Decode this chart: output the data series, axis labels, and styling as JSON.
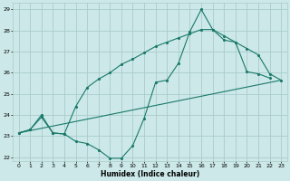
{
  "title": "",
  "xlabel": "Humidex (Indice chaleur)",
  "bg_color": "#cce8e8",
  "grid_color": "#aacccc",
  "line_color": "#1a7a6a",
  "xlim": [
    -0.5,
    23.5
  ],
  "ylim": [
    21.8,
    29.3
  ],
  "xticks": [
    0,
    1,
    2,
    3,
    4,
    5,
    6,
    7,
    8,
    9,
    10,
    11,
    12,
    13,
    14,
    15,
    16,
    17,
    18,
    19,
    20,
    21,
    22,
    23
  ],
  "yticks": [
    22,
    23,
    24,
    25,
    26,
    27,
    28,
    29
  ],
  "line1_x": [
    0,
    1,
    2,
    3,
    4,
    5,
    6,
    7,
    8,
    9,
    10,
    11,
    12,
    13,
    14,
    15,
    16,
    17,
    18,
    19,
    20,
    21,
    22
  ],
  "line1_y": [
    23.15,
    23.3,
    23.9,
    23.15,
    23.1,
    22.75,
    22.65,
    22.35,
    21.95,
    21.95,
    22.55,
    23.85,
    25.55,
    25.65,
    26.45,
    27.95,
    29.0,
    28.05,
    27.55,
    27.45,
    26.05,
    25.95,
    25.75
  ],
  "line2_x": [
    0,
    1,
    2,
    3,
    4,
    5,
    6,
    7,
    8,
    9,
    10,
    11,
    12,
    13,
    14,
    15,
    16,
    17,
    18,
    19,
    20,
    21,
    22,
    23
  ],
  "line2_y": [
    23.15,
    23.3,
    24.0,
    23.15,
    23.1,
    24.4,
    25.3,
    25.7,
    26.0,
    26.4,
    26.65,
    26.95,
    27.25,
    27.45,
    27.65,
    27.85,
    28.05,
    28.05,
    27.75,
    27.45,
    27.15,
    26.85,
    25.95,
    25.65
  ],
  "line3_x": [
    0,
    23
  ],
  "line3_y": [
    23.15,
    25.65
  ]
}
